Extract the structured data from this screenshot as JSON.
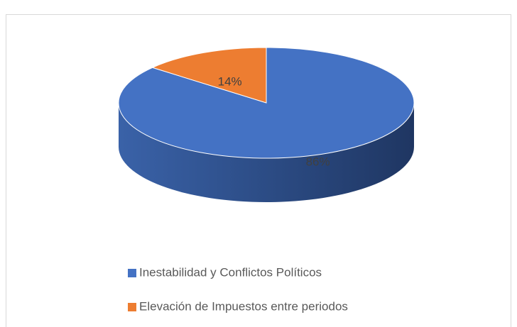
{
  "chart_data": {
    "type": "pie",
    "categories": [
      "Inestabilidad y Conflictos Políticos",
      "Elevación de Impuestos entre periodos"
    ],
    "values": [
      86,
      14
    ],
    "value_labels": [
      "86%",
      "14%"
    ],
    "colors": [
      "#4472c4",
      "#ed7d31"
    ],
    "legend": "bottom"
  }
}
